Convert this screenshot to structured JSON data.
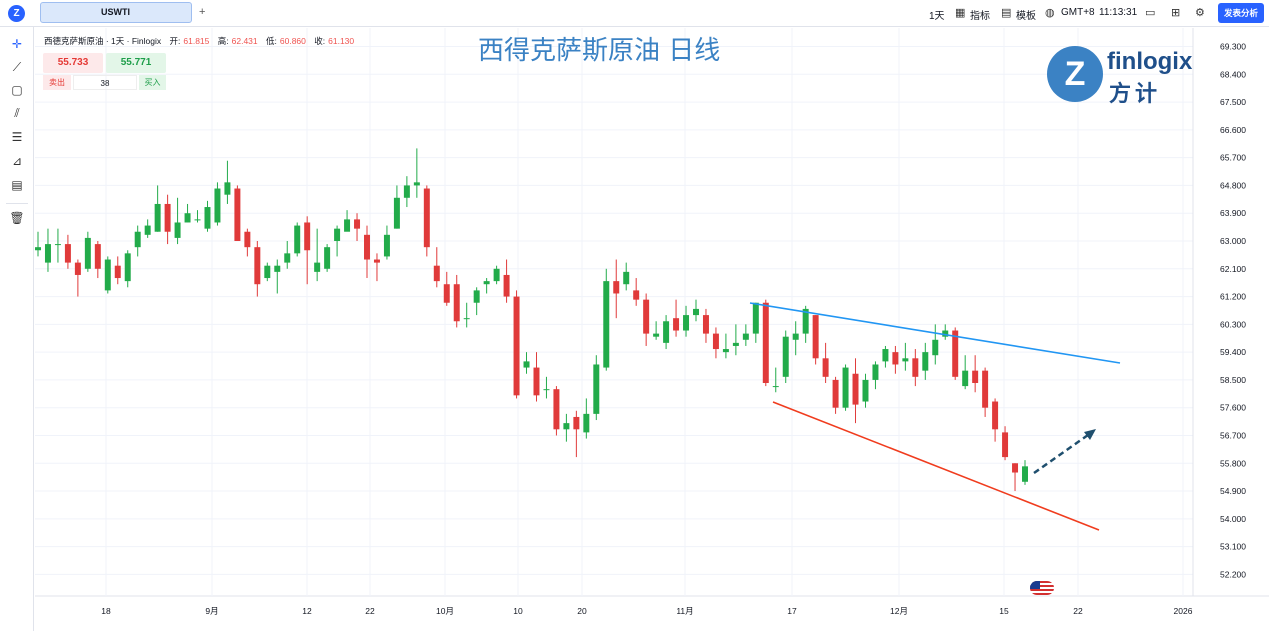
{
  "topbar": {
    "symbol": "USWTI",
    "add_tab": "+",
    "interval": "1天",
    "indicators": "指标",
    "templates": "模板",
    "timezone": "GMT+8",
    "clock": "11:13:31",
    "publish": "发表分析"
  },
  "legend": {
    "name": "西德克萨斯原油 · 1天 · Finlogix",
    "open_label": "开:",
    "open": "61.815",
    "high_label": "高:",
    "high": "62.431",
    "low_label": "低:",
    "low": "60.860",
    "close_label": "收:",
    "close": "61.130"
  },
  "trade": {
    "sell_price": "55.733",
    "buy_price": "55.771",
    "sell_label": "卖出",
    "buy_label": "买入",
    "quantity": "38"
  },
  "overlay_title": "西得克萨斯原油 日线",
  "brand": {
    "en": "finlogix",
    "cn": "方计",
    "mark": "Z"
  },
  "chart_data": {
    "type": "candlestick",
    "y_ticks": [
      "69.300",
      "68.400",
      "67.500",
      "66.600",
      "65.700",
      "64.800",
      "63.900",
      "63.000",
      "62.100",
      "61.200",
      "60.300",
      "59.400",
      "58.500",
      "57.600",
      "56.700",
      "55.800",
      "54.900",
      "54.000",
      "53.100",
      "52.200"
    ],
    "ylim": [
      51.5,
      69.9
    ],
    "x_ticks": [
      "18",
      "9月",
      "12",
      "22",
      "10月",
      "10",
      "20",
      "11月",
      "17",
      "12月",
      "15",
      "22",
      "2026"
    ],
    "candles": [
      [
        62.7,
        62.8,
        63.3,
        62.5
      ],
      [
        62.3,
        62.9,
        63.4,
        62.0
      ],
      [
        62.9,
        62.9,
        63.4,
        62.3
      ],
      [
        62.9,
        62.3,
        63.2,
        62.1
      ],
      [
        62.3,
        61.9,
        62.4,
        61.2
      ],
      [
        62.1,
        63.1,
        63.3,
        62.0
      ],
      [
        62.9,
        62.1,
        63.0,
        61.8
      ],
      [
        61.4,
        62.4,
        62.5,
        61.3
      ],
      [
        62.2,
        61.8,
        62.5,
        61.6
      ],
      [
        61.7,
        62.6,
        62.7,
        61.5
      ],
      [
        62.8,
        63.3,
        63.5,
        62.5
      ],
      [
        63.2,
        63.5,
        63.7,
        63.1
      ],
      [
        63.3,
        64.2,
        64.8,
        63.3
      ],
      [
        64.2,
        63.3,
        64.5,
        62.9
      ],
      [
        63.1,
        63.6,
        64.4,
        62.9
      ],
      [
        63.6,
        63.9,
        64.2,
        63.6
      ],
      [
        63.7,
        63.7,
        64.0,
        63.6
      ],
      [
        63.4,
        64.1,
        64.3,
        63.3
      ],
      [
        63.6,
        64.7,
        64.9,
        63.5
      ],
      [
        64.5,
        64.9,
        65.6,
        64.2
      ],
      [
        64.7,
        63.0,
        64.8,
        63.0
      ],
      [
        63.3,
        62.8,
        63.4,
        62.5
      ],
      [
        62.8,
        61.6,
        63.0,
        61.2
      ],
      [
        61.8,
        62.2,
        62.3,
        61.7
      ],
      [
        62.0,
        62.2,
        62.4,
        61.3
      ],
      [
        62.3,
        62.6,
        63.0,
        62.1
      ],
      [
        62.6,
        63.5,
        63.6,
        62.5
      ],
      [
        63.6,
        62.7,
        63.8,
        61.6
      ],
      [
        62.0,
        62.3,
        63.4,
        61.7
      ],
      [
        62.1,
        62.8,
        62.9,
        62.0
      ],
      [
        63.0,
        63.4,
        63.5,
        62.5
      ],
      [
        63.3,
        63.7,
        64.0,
        63.4
      ],
      [
        63.7,
        63.4,
        63.9,
        63.0
      ],
      [
        63.2,
        62.4,
        63.5,
        61.8
      ],
      [
        62.4,
        62.3,
        62.6,
        61.7
      ],
      [
        62.5,
        63.2,
        63.5,
        62.4
      ],
      [
        63.4,
        64.4,
        64.8,
        63.4
      ],
      [
        64.4,
        64.8,
        65.1,
        64.1
      ],
      [
        64.8,
        64.9,
        66.0,
        64.4
      ],
      [
        64.7,
        62.8,
        64.8,
        62.5
      ],
      [
        62.2,
        61.7,
        62.8,
        61.5
      ],
      [
        61.6,
        61.0,
        62.0,
        60.9
      ],
      [
        61.6,
        60.4,
        61.9,
        60.2
      ],
      [
        60.5,
        60.5,
        61.0,
        60.2
      ],
      [
        61.0,
        61.4,
        61.5,
        60.6
      ],
      [
        61.6,
        61.7,
        61.8,
        61.3
      ],
      [
        61.7,
        62.1,
        62.2,
        61.6
      ],
      [
        61.9,
        61.2,
        62.4,
        61.0
      ],
      [
        61.2,
        58.0,
        61.4,
        57.9
      ],
      [
        58.9,
        59.1,
        59.4,
        58.7
      ],
      [
        58.9,
        58.0,
        59.4,
        57.8
      ],
      [
        58.2,
        58.2,
        58.6,
        57.9
      ],
      [
        58.2,
        56.9,
        58.3,
        56.7
      ],
      [
        56.9,
        57.1,
        57.4,
        56.5
      ],
      [
        57.3,
        56.9,
        57.5,
        56.0
      ],
      [
        56.8,
        57.4,
        57.9,
        56.6
      ],
      [
        57.4,
        59.0,
        59.3,
        57.2
      ],
      [
        58.9,
        61.7,
        62.1,
        58.8
      ],
      [
        61.7,
        61.3,
        62.4,
        60.5
      ],
      [
        61.6,
        62.0,
        62.3,
        61.4
      ],
      [
        61.4,
        61.1,
        61.8,
        60.9
      ],
      [
        61.1,
        60.0,
        61.3,
        59.6
      ],
      [
        59.9,
        60.0,
        60.4,
        59.8
      ],
      [
        59.7,
        60.4,
        60.6,
        59.5
      ],
      [
        60.5,
        60.1,
        61.1,
        59.9
      ],
      [
        60.1,
        60.6,
        60.9,
        59.9
      ],
      [
        60.6,
        60.8,
        61.1,
        60.4
      ],
      [
        60.6,
        60.0,
        60.8,
        59.7
      ],
      [
        60.0,
        59.5,
        60.2,
        59.2
      ],
      [
        59.4,
        59.5,
        60.0,
        59.2
      ],
      [
        59.6,
        59.7,
        60.3,
        59.3
      ],
      [
        59.8,
        60.0,
        60.3,
        59.6
      ],
      [
        60.0,
        61.0,
        61.0,
        59.7
      ],
      [
        61.0,
        58.4,
        61.1,
        58.3
      ],
      [
        58.3,
        58.3,
        58.9,
        58.1
      ],
      [
        58.6,
        59.9,
        60.1,
        58.4
      ],
      [
        59.8,
        60.0,
        60.4,
        59.3
      ],
      [
        60.0,
        60.8,
        60.9,
        59.7
      ],
      [
        60.6,
        59.2,
        60.6,
        59.0
      ],
      [
        59.2,
        58.6,
        59.7,
        58.4
      ],
      [
        58.5,
        57.6,
        58.6,
        57.4
      ],
      [
        57.6,
        58.9,
        59.0,
        57.5
      ],
      [
        58.7,
        57.7,
        59.2,
        57.1
      ],
      [
        57.8,
        58.5,
        58.7,
        57.6
      ],
      [
        58.5,
        59.0,
        59.1,
        58.2
      ],
      [
        59.1,
        59.5,
        59.6,
        58.9
      ],
      [
        59.4,
        59.0,
        59.6,
        58.7
      ],
      [
        59.1,
        59.2,
        59.7,
        58.8
      ],
      [
        59.2,
        58.6,
        59.5,
        58.3
      ],
      [
        58.8,
        59.4,
        59.7,
        58.5
      ],
      [
        59.3,
        59.8,
        60.3,
        59.0
      ],
      [
        59.9,
        60.1,
        60.3,
        59.8
      ],
      [
        60.1,
        58.6,
        60.2,
        58.5
      ],
      [
        58.3,
        58.8,
        59.3,
        58.2
      ],
      [
        58.8,
        58.4,
        59.3,
        58.1
      ],
      [
        58.8,
        57.6,
        58.9,
        57.3
      ],
      [
        57.8,
        56.9,
        57.9,
        56.5
      ],
      [
        56.8,
        56.0,
        57.0,
        55.9
      ],
      [
        55.8,
        55.5,
        55.8,
        54.9
      ],
      [
        55.2,
        55.7,
        55.9,
        55.1
      ]
    ]
  }
}
